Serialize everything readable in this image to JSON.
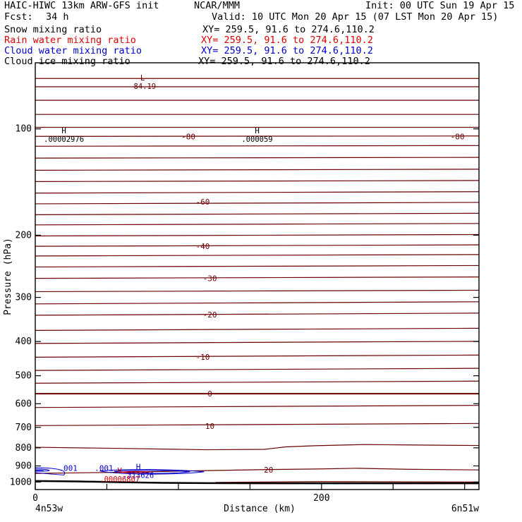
{
  "header": {
    "title": "HAIC-HIWC 13km ARW-GFS init",
    "org": "NCAR/MMM",
    "init": "Init: 00 UTC Sun 19 Apr 15",
    "fcst_label": "Fcst:",
    "fcst_value": "34 h",
    "valid": "Valid: 10 UTC Mon 20 Apr 15 (07 LST Mon 20 Apr 15)"
  },
  "fields": [
    {
      "name": "Snow mixing ratio",
      "xy": "XY= 259.5, 91.6 to 274.6,110.2",
      "color": "#000000"
    },
    {
      "name": "Rain water mixing ratio",
      "xy": "XY= 259.5, 91.6 to 274.6,110.2",
      "color": "#e00000"
    },
    {
      "name": "Cloud water mixing ratio",
      "xy": "XY= 259.5, 91.6 to 274.6,110.2",
      "color": "#0000cc"
    },
    {
      "name": "Cloud ice mixing ratio",
      "xy": "XY= 259.5, 91.6 to 274.6,110.2",
      "color": "#000000"
    }
  ],
  "chart_data": {
    "type": "line",
    "subtype": "vertical cross-section contour plot",
    "xlabel": "Distance (km)",
    "ylabel": "Pressure (hPa)",
    "xlim": [
      0,
      310
    ],
    "ylim": [
      1050,
      65
    ],
    "yscale": "log",
    "x_ticks": [
      0,
      200
    ],
    "y_ticks": [
      100,
      200,
      300,
      400,
      500,
      600,
      700,
      800,
      900,
      1000
    ],
    "x_end_labels": {
      "left": "4n53w",
      "right": "6n51w"
    },
    "temperature_contour_labels": [
      {
        "text": "-80",
        "x": 107,
        "p": 105
      },
      {
        "text": "-80",
        "x": 295,
        "p": 105
      },
      {
        "text": "-60",
        "x": 117,
        "p": 161
      },
      {
        "text": "-40",
        "x": 117,
        "p": 215
      },
      {
        "text": "-30",
        "x": 122,
        "p": 265
      },
      {
        "text": "-20",
        "x": 122,
        "p": 336
      },
      {
        "text": "-10",
        "x": 117,
        "p": 442
      },
      {
        "text": "0",
        "x": 122,
        "p": 562
      },
      {
        "text": "10",
        "x": 122,
        "p": 694
      },
      {
        "text": "20",
        "x": 163,
        "p": 923
      }
    ],
    "extrema": [
      {
        "type": "L",
        "value": "-84.19",
        "x": 75,
        "p": 73,
        "color": "#6b0000"
      },
      {
        "type": "H",
        "value": ".00002976",
        "x": 20,
        "p": 103,
        "color": "#000000"
      },
      {
        "type": "H",
        "value": ".000059",
        "x": 155,
        "p": 103,
        "color": "#000000"
      },
      {
        "type": "H",
        "value": ".313626",
        "x": 72,
        "p": 922,
        "color": "#0000cc"
      },
      {
        "type": "H",
        "value": ".00006807",
        "x": 59,
        "p": 945,
        "color": "#e00000"
      }
    ],
    "cloud_water_contour_labels": [
      {
        "text": ".001",
        "x": 23,
        "p": 913
      },
      {
        "text": ".001",
        "x": 48,
        "p": 913
      }
    ],
    "surface_pressure": {
      "x": [
        0,
        30,
        60,
        90,
        120,
        160,
        200,
        240,
        280,
        310
      ],
      "p": [
        993,
        996,
        1001,
        1005,
        1007,
        1008,
        1008,
        1008,
        1008,
        1008
      ]
    },
    "colors": {
      "temperature": "#6b0000",
      "cloud_water": "#0000cc",
      "rain": "#e00000",
      "surface": "#000000"
    }
  }
}
